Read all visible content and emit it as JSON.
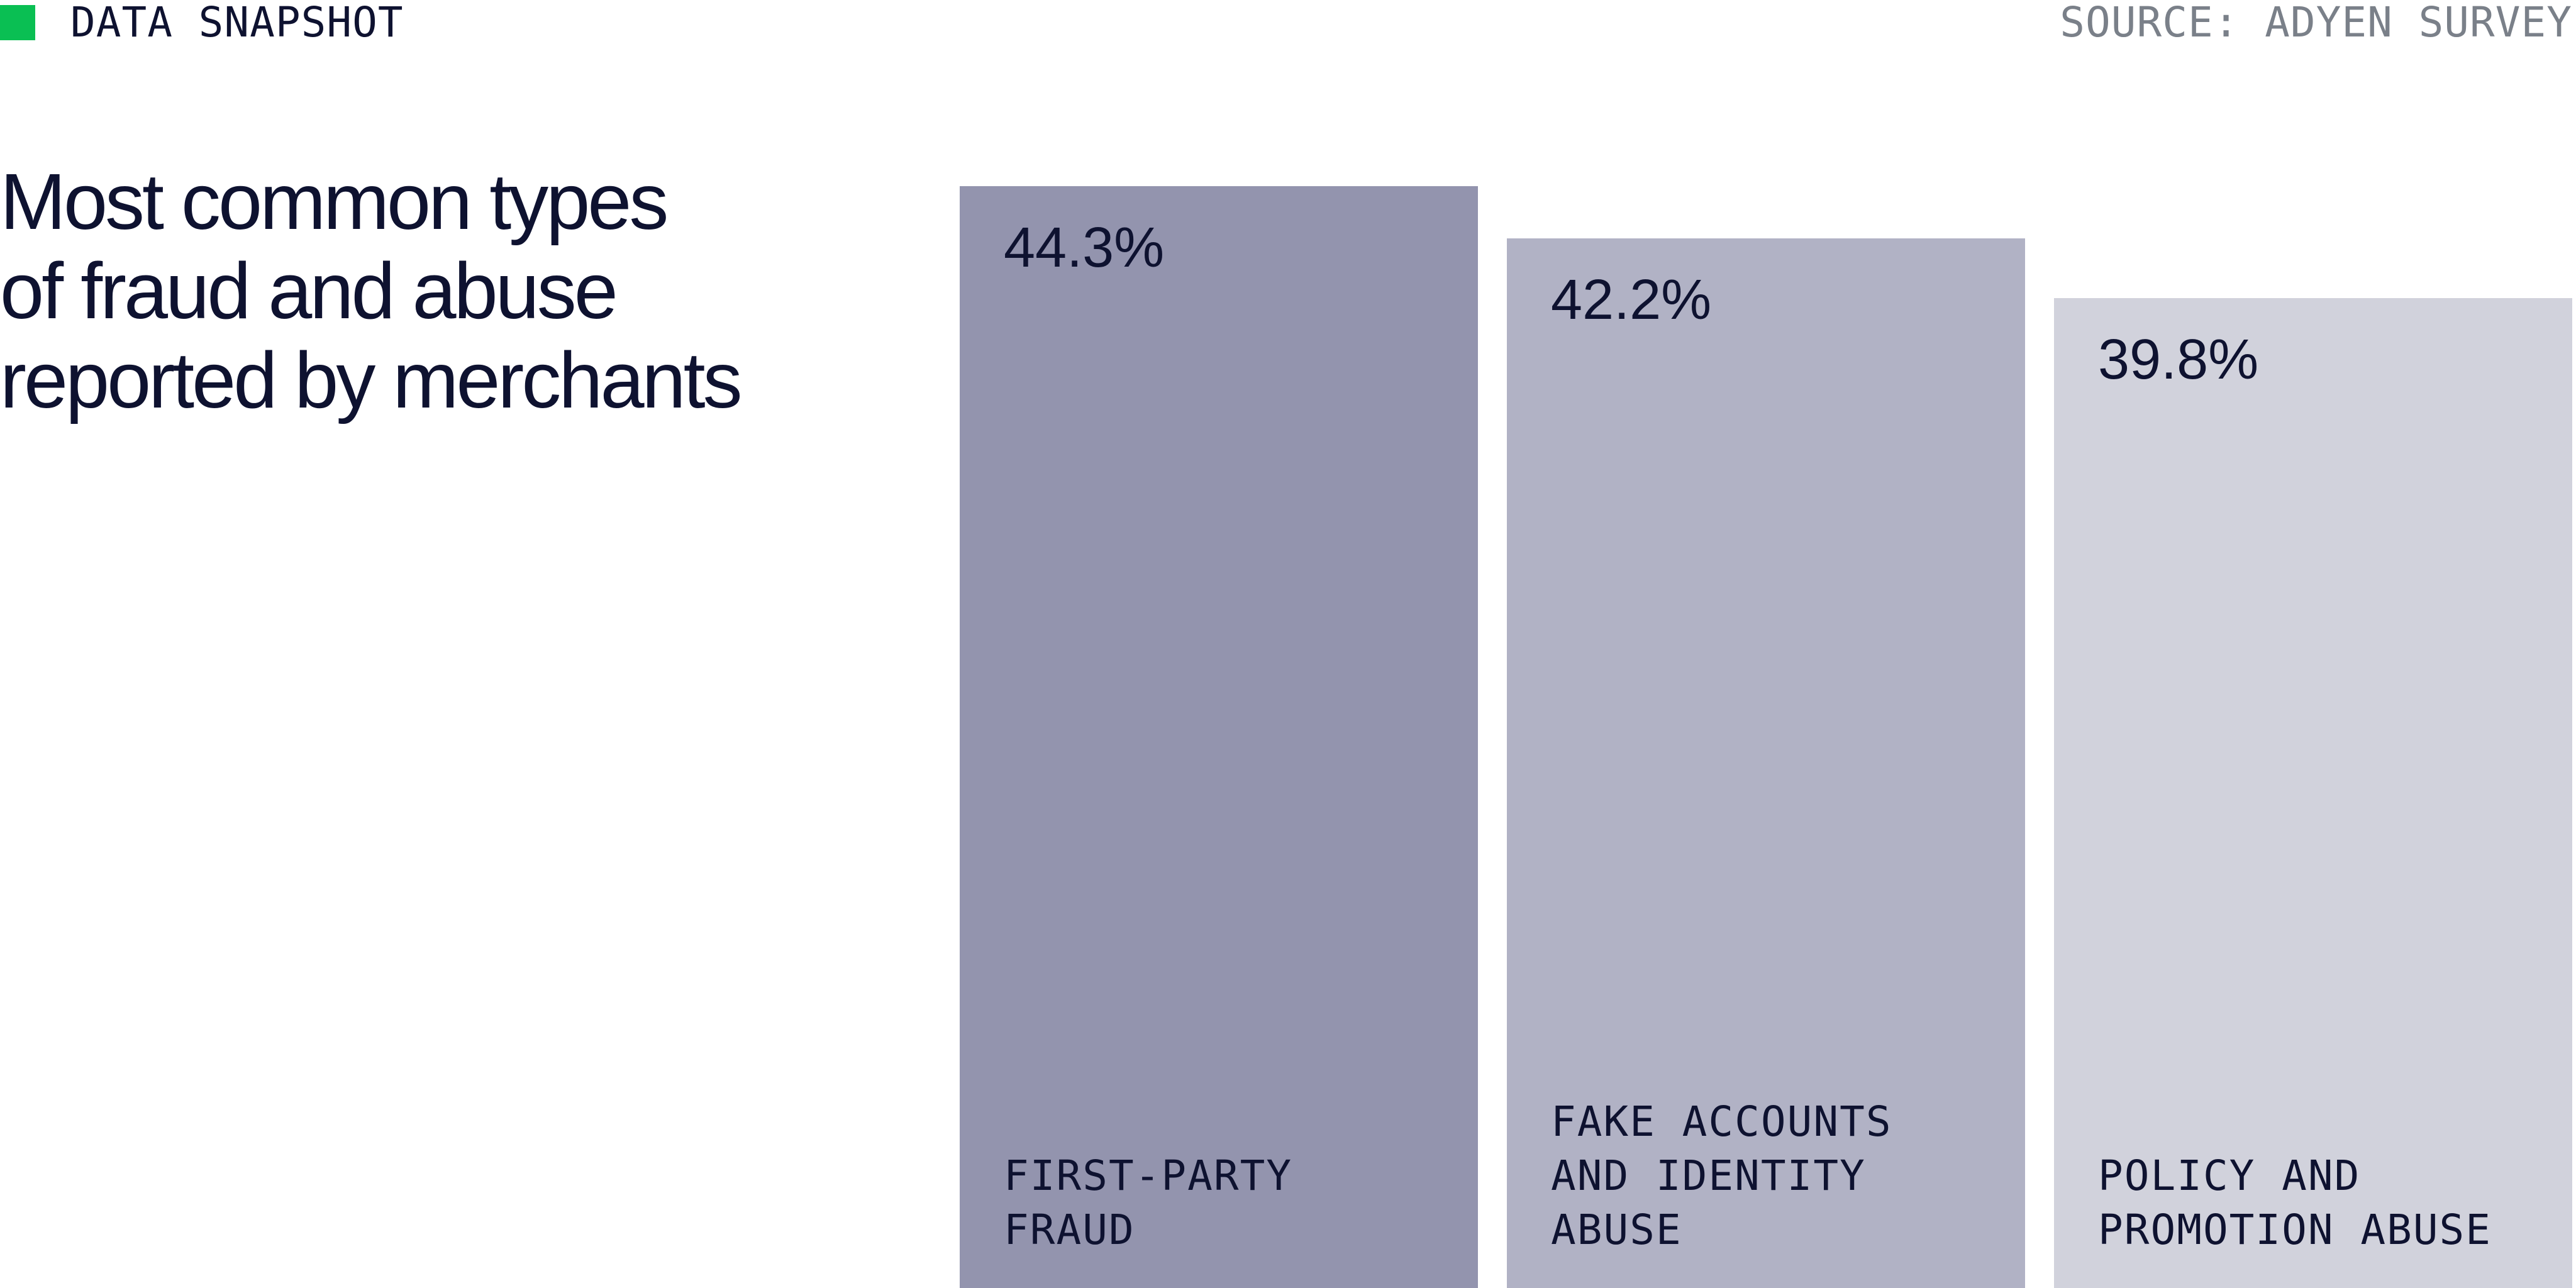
{
  "header": {
    "tag": "DATA SNAPSHOT",
    "source": "SOURCE: ADYEN SURVEY",
    "marker_color": "#0abf53"
  },
  "title_lines": [
    "Most common types",
    "of fraud and abuse",
    "reported by merchants"
  ],
  "chart_data": {
    "type": "bar",
    "title": "Most common types of fraud and abuse reported by merchants",
    "xlabel": "",
    "ylabel": "",
    "ylim": [
      0,
      44.3
    ],
    "grid": false,
    "legend": "none",
    "categories": [
      "FIRST-PARTY FRAUD",
      "FAKE ACCOUNTS AND IDENTITY ABUSE",
      "POLICY AND PROMOTION ABUSE"
    ],
    "category_lines": [
      [
        "FIRST-PARTY",
        "FRAUD"
      ],
      [
        "FAKE ACCOUNTS",
        "AND IDENTITY",
        "ABUSE"
      ],
      [
        "POLICY AND",
        "PROMOTION ABUSE"
      ]
    ],
    "values": [
      44.3,
      42.2,
      39.8
    ],
    "value_labels": [
      "44.3%",
      "42.2%",
      "39.8%"
    ],
    "colors": [
      "#9394ae",
      "#b1b2c5",
      "#d1d2dc"
    ]
  }
}
